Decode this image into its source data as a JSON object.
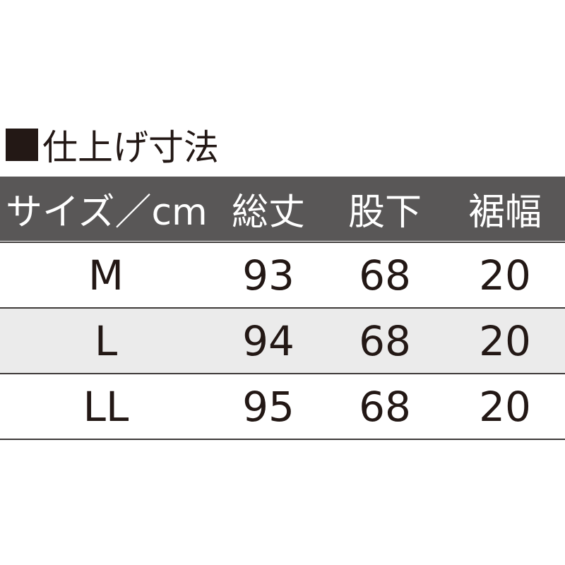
{
  "title": "仕上げ寸法",
  "colors": {
    "header_bg": "#595757",
    "stripe_bg": "#ebebeb",
    "text": "#231815"
  },
  "table": {
    "headers": [
      "サイズ／cm",
      "総丈",
      "股下",
      "裾幅"
    ],
    "rows": [
      [
        "M",
        "93",
        "68",
        "20"
      ],
      [
        "L",
        "94",
        "68",
        "20"
      ],
      [
        "LL",
        "95",
        "68",
        "20"
      ]
    ]
  }
}
